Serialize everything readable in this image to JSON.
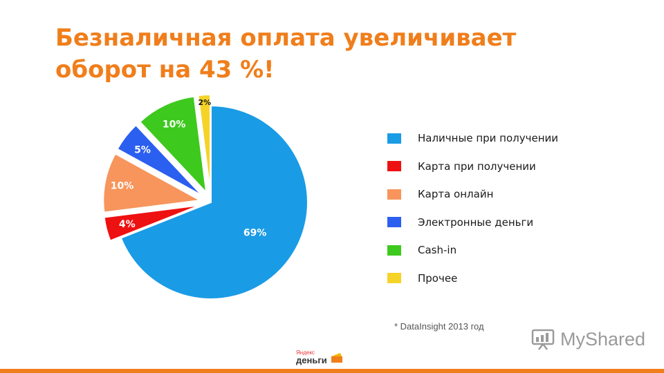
{
  "slide": {
    "title": "Безналичная оплата увеличивает оборот на 43 %!",
    "source_note": "* DataInsight 2013 год",
    "watermark": "MyShared",
    "logo": {
      "brand": "Яндекс",
      "product": "деньги"
    },
    "accent_color": "#f07e1b"
  },
  "chart_data": {
    "type": "pie",
    "title": "",
    "values": [
      69,
      4,
      10,
      5,
      10,
      2
    ],
    "value_labels": [
      "69%",
      "4%",
      "10%",
      "5%",
      "10%",
      "2%"
    ],
    "categories": [
      "Наличные при получении",
      "Карта при получении",
      "Карта онлайн",
      "Электронные деньги",
      "Cash-in",
      "Прочее"
    ],
    "colors": [
      "#1a9be5",
      "#ee1111",
      "#f7955c",
      "#2b5ff0",
      "#3dc91e",
      "#f5d327"
    ],
    "exploded": true,
    "legend_position": "right"
  }
}
